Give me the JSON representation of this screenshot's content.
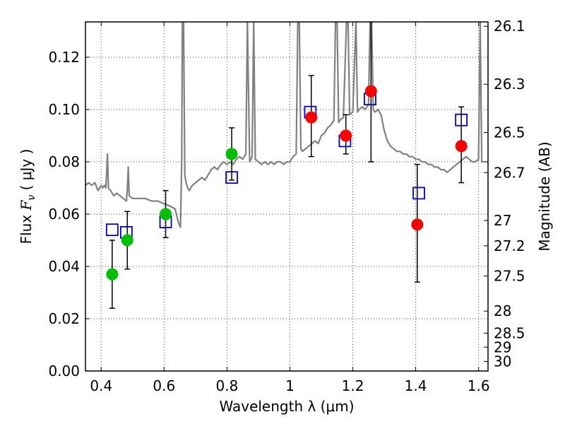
{
  "chart_data": {
    "type": "scatter",
    "title": "",
    "xlabel": "Wavelength  λ (μm)",
    "ylabel": "Flux  F_ν  ( μJy )",
    "ylabel_right": "Magnitude (AB)",
    "xlim": [
      0.35,
      1.63
    ],
    "ylim": [
      0.0,
      0.1335
    ],
    "grid": true,
    "x_ticks": [
      {
        "value": 0.4,
        "label": "0.4"
      },
      {
        "value": 0.6,
        "label": "0.6"
      },
      {
        "value": 0.8,
        "label": "0.8"
      },
      {
        "value": 1.0,
        "label": "1"
      },
      {
        "value": 1.2,
        "label": "1.2"
      },
      {
        "value": 1.4,
        "label": "1.4"
      },
      {
        "value": 1.6,
        "label": "1.6"
      }
    ],
    "y_ticks": [
      {
        "value": 0.0,
        "label": "0.00"
      },
      {
        "value": 0.02,
        "label": "0.02"
      },
      {
        "value": 0.04,
        "label": "0.04"
      },
      {
        "value": 0.06,
        "label": "0.06"
      },
      {
        "value": 0.08,
        "label": "0.08"
      },
      {
        "value": 0.1,
        "label": "0.10"
      },
      {
        "value": 0.12,
        "label": "0.12"
      }
    ],
    "mag_ticks": [
      {
        "mag": 26.1,
        "label": "26.1"
      },
      {
        "mag": 26.3,
        "label": "26.3"
      },
      {
        "mag": 26.5,
        "label": "26.5"
      },
      {
        "mag": 26.7,
        "label": "26.7"
      },
      {
        "mag": 27.0,
        "label": "27"
      },
      {
        "mag": 27.2,
        "label": "27.2"
      },
      {
        "mag": 27.5,
        "label": "27.5"
      },
      {
        "mag": 28.0,
        "label": "28"
      },
      {
        "mag": 28.5,
        "label": "28.5"
      },
      {
        "mag": 29.0,
        "label": "29"
      },
      {
        "mag": 30.0,
        "label": "30"
      }
    ],
    "series": [
      {
        "name": "model_spectrum",
        "kind": "line",
        "color": "#808080",
        "points": [
          [
            0.35,
            0.071
          ],
          [
            0.36,
            0.072
          ],
          [
            0.37,
            0.071
          ],
          [
            0.38,
            0.072
          ],
          [
            0.39,
            0.069
          ],
          [
            0.4,
            0.071
          ],
          [
            0.405,
            0.07
          ],
          [
            0.41,
            0.071
          ],
          [
            0.415,
            0.07
          ],
          [
            0.42,
            0.083
          ],
          [
            0.423,
            0.07
          ],
          [
            0.43,
            0.069
          ],
          [
            0.44,
            0.067
          ],
          [
            0.45,
            0.068
          ],
          [
            0.46,
            0.067
          ],
          [
            0.47,
            0.066
          ],
          [
            0.48,
            0.065
          ],
          [
            0.483,
            0.069
          ],
          [
            0.486,
            0.078
          ],
          [
            0.489,
            0.067
          ],
          [
            0.5,
            0.066
          ],
          [
            0.52,
            0.066
          ],
          [
            0.54,
            0.066
          ],
          [
            0.56,
            0.065
          ],
          [
            0.58,
            0.065
          ],
          [
            0.6,
            0.064
          ],
          [
            0.62,
            0.063
          ],
          [
            0.635,
            0.062
          ],
          [
            0.645,
            0.057
          ],
          [
            0.652,
            0.055
          ],
          [
            0.656,
            0.08
          ],
          [
            0.658,
            0.1335
          ],
          [
            0.662,
            0.1335
          ],
          [
            0.666,
            0.075
          ],
          [
            0.67,
            0.072
          ],
          [
            0.675,
            0.07
          ],
          [
            0.68,
            0.069
          ],
          [
            0.69,
            0.071
          ],
          [
            0.7,
            0.072
          ],
          [
            0.71,
            0.073
          ],
          [
            0.72,
            0.074
          ],
          [
            0.73,
            0.073
          ],
          [
            0.74,
            0.075
          ],
          [
            0.75,
            0.077
          ],
          [
            0.76,
            0.078
          ],
          [
            0.77,
            0.077
          ],
          [
            0.78,
            0.079
          ],
          [
            0.79,
            0.08
          ],
          [
            0.8,
            0.079
          ],
          [
            0.81,
            0.08
          ],
          [
            0.82,
            0.079
          ],
          [
            0.83,
            0.081
          ],
          [
            0.84,
            0.082
          ],
          [
            0.85,
            0.081
          ],
          [
            0.86,
            0.083
          ],
          [
            0.865,
            0.1335
          ],
          [
            0.872,
            0.08
          ],
          [
            0.88,
            0.082
          ],
          [
            0.885,
            0.1335
          ],
          [
            0.89,
            0.081
          ],
          [
            0.9,
            0.08
          ],
          [
            0.91,
            0.079
          ],
          [
            0.92,
            0.08
          ],
          [
            0.93,
            0.079
          ],
          [
            0.94,
            0.08
          ],
          [
            0.95,
            0.079
          ],
          [
            0.96,
            0.08
          ],
          [
            0.97,
            0.08
          ],
          [
            0.98,
            0.079
          ],
          [
            0.99,
            0.08
          ],
          [
            1.0,
            0.08
          ],
          [
            1.01,
            0.082
          ],
          [
            1.02,
            0.083
          ],
          [
            1.025,
            0.1335
          ],
          [
            1.03,
            0.1335
          ],
          [
            1.035,
            0.085
          ],
          [
            1.04,
            0.084
          ],
          [
            1.05,
            0.085
          ],
          [
            1.06,
            0.086
          ],
          [
            1.07,
            0.087
          ],
          [
            1.08,
            0.088
          ],
          [
            1.09,
            0.087
          ],
          [
            1.1,
            0.09
          ],
          [
            1.11,
            0.091
          ],
          [
            1.12,
            0.093
          ],
          [
            1.13,
            0.094
          ],
          [
            1.14,
            0.096
          ],
          [
            1.145,
            0.1335
          ],
          [
            1.15,
            0.1335
          ],
          [
            1.155,
            0.095
          ],
          [
            1.16,
            0.096
          ],
          [
            1.17,
            0.097
          ],
          [
            1.18,
            0.1335
          ],
          [
            1.185,
            0.1335
          ],
          [
            1.19,
            0.098
          ],
          [
            1.2,
            0.099
          ],
          [
            1.21,
            0.1335
          ],
          [
            1.215,
            0.099
          ],
          [
            1.22,
            0.1
          ],
          [
            1.23,
            0.101
          ],
          [
            1.24,
            0.1
          ],
          [
            1.25,
            0.102
          ],
          [
            1.255,
            0.1335
          ],
          [
            1.26,
            0.1335
          ],
          [
            1.265,
            0.1
          ],
          [
            1.27,
            0.099
          ],
          [
            1.28,
            0.1
          ],
          [
            1.29,
            0.098
          ],
          [
            1.3,
            0.092
          ],
          [
            1.31,
            0.088
          ],
          [
            1.32,
            0.086
          ],
          [
            1.33,
            0.085
          ],
          [
            1.34,
            0.084
          ],
          [
            1.35,
            0.084
          ],
          [
            1.36,
            0.083
          ],
          [
            1.37,
            0.083
          ],
          [
            1.38,
            0.082
          ],
          [
            1.39,
            0.082
          ],
          [
            1.4,
            0.081
          ],
          [
            1.41,
            0.081
          ],
          [
            1.42,
            0.08
          ],
          [
            1.43,
            0.08
          ],
          [
            1.44,
            0.079
          ],
          [
            1.45,
            0.079
          ],
          [
            1.46,
            0.078
          ],
          [
            1.47,
            0.078
          ],
          [
            1.48,
            0.077
          ],
          [
            1.49,
            0.077
          ],
          [
            1.5,
            0.076
          ],
          [
            1.51,
            0.077
          ],
          [
            1.52,
            0.078
          ],
          [
            1.53,
            0.079
          ],
          [
            1.54,
            0.08
          ],
          [
            1.55,
            0.081
          ],
          [
            1.56,
            0.082
          ],
          [
            1.57,
            0.081
          ],
          [
            1.58,
            0.08
          ],
          [
            1.59,
            0.08
          ],
          [
            1.6,
            0.081
          ],
          [
            1.605,
            0.1335
          ],
          [
            1.61,
            0.08
          ],
          [
            1.62,
            0.08
          ],
          [
            1.63,
            0.08
          ]
        ]
      },
      {
        "name": "model_photometry",
        "kind": "open_square",
        "color": "#0000cc",
        "points": [
          [
            0.435,
            0.054
          ],
          [
            0.48,
            0.053
          ],
          [
            0.605,
            0.057
          ],
          [
            0.815,
            0.074
          ],
          [
            1.065,
            0.099
          ],
          [
            1.175,
            0.088
          ],
          [
            1.255,
            0.104
          ],
          [
            1.41,
            0.068
          ],
          [
            1.545,
            0.096
          ]
        ]
      },
      {
        "name": "observed_optical",
        "kind": "filled_circle",
        "color": "#00c000",
        "points": [
          {
            "x": 0.435,
            "y": 0.037,
            "lo": 0.024,
            "hi": 0.05
          },
          {
            "x": 0.483,
            "y": 0.05,
            "lo": 0.039,
            "hi": 0.061
          },
          {
            "x": 0.605,
            "y": 0.06,
            "lo": 0.051,
            "hi": 0.069
          },
          {
            "x": 0.815,
            "y": 0.083,
            "lo": 0.073,
            "hi": 0.093
          }
        ]
      },
      {
        "name": "observed_nir",
        "kind": "filled_circle",
        "color": "#ff0000",
        "points": [
          {
            "x": 1.068,
            "y": 0.097,
            "lo": 0.082,
            "hi": 0.113
          },
          {
            "x": 1.178,
            "y": 0.09,
            "lo": 0.083,
            "hi": 0.098
          },
          {
            "x": 1.258,
            "y": 0.107,
            "lo": 0.08,
            "hi": 0.1335
          },
          {
            "x": 1.405,
            "y": 0.056,
            "lo": 0.034,
            "hi": 0.079
          },
          {
            "x": 1.545,
            "y": 0.086,
            "lo": 0.072,
            "hi": 0.101
          }
        ]
      }
    ]
  }
}
